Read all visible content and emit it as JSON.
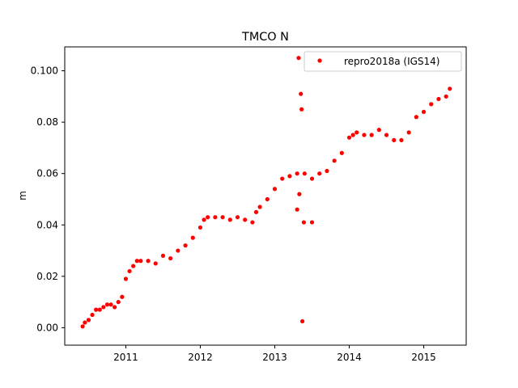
{
  "chart_data": {
    "type": "scatter",
    "title": "TMCO N",
    "xlabel": "",
    "ylabel": "m",
    "xlim": [
      2010.18,
      2015.57
    ],
    "ylim": [
      -0.0068,
      0.1093
    ],
    "grid": false,
    "legend_position": "top-right",
    "x_ticks": [
      2011,
      2012,
      2013,
      2014,
      2015
    ],
    "x_tick_labels": [
      "2011",
      "2012",
      "2013",
      "2014",
      "2015"
    ],
    "y_ticks": [
      0.0,
      0.02,
      0.04,
      0.06,
      0.08,
      0.1
    ],
    "y_tick_labels": [
      "0.00",
      "0.02",
      "0.04",
      "0.06",
      "0.08",
      "0.100"
    ],
    "series": [
      {
        "name": "repro2018a (IGS14)",
        "color": "#ff0000",
        "x": [
          2010.42,
          2010.45,
          2010.5,
          2010.55,
          2010.6,
          2010.65,
          2010.7,
          2010.75,
          2010.8,
          2010.85,
          2010.9,
          2010.95,
          2011.0,
          2011.05,
          2011.1,
          2011.15,
          2011.2,
          2011.3,
          2011.4,
          2011.5,
          2011.6,
          2011.7,
          2011.8,
          2011.9,
          2012.0,
          2012.05,
          2012.1,
          2012.2,
          2012.3,
          2012.4,
          2012.5,
          2012.6,
          2012.7,
          2012.75,
          2012.8,
          2012.9,
          2013.0,
          2013.1,
          2013.2,
          2013.3,
          2013.4,
          2013.5,
          2013.6,
          2013.7,
          2013.8,
          2013.9,
          2014.0,
          2014.05,
          2014.1,
          2014.2,
          2014.3,
          2014.4,
          2014.5,
          2014.6,
          2014.7,
          2014.8,
          2014.9,
          2015.0,
          2015.1,
          2015.2,
          2015.3,
          2015.35,
          2013.32,
          2013.35,
          2013.36,
          2013.37,
          2013.33,
          2013.3,
          2013.39,
          2013.5
        ],
        "y": [
          0.0005,
          0.002,
          0.003,
          0.005,
          0.007,
          0.007,
          0.008,
          0.009,
          0.009,
          0.008,
          0.01,
          0.012,
          0.019,
          0.022,
          0.024,
          0.026,
          0.026,
          0.026,
          0.025,
          0.028,
          0.027,
          0.03,
          0.032,
          0.035,
          0.039,
          0.042,
          0.043,
          0.043,
          0.043,
          0.042,
          0.043,
          0.042,
          0.041,
          0.045,
          0.047,
          0.05,
          0.054,
          0.058,
          0.059,
          0.06,
          0.06,
          0.058,
          0.06,
          0.061,
          0.065,
          0.068,
          0.074,
          0.075,
          0.076,
          0.075,
          0.075,
          0.077,
          0.075,
          0.073,
          0.073,
          0.076,
          0.082,
          0.084,
          0.087,
          0.089,
          0.09,
          0.093,
          0.105,
          0.091,
          0.085,
          0.0025,
          0.052,
          0.046,
          0.041,
          0.041
        ]
      }
    ]
  }
}
